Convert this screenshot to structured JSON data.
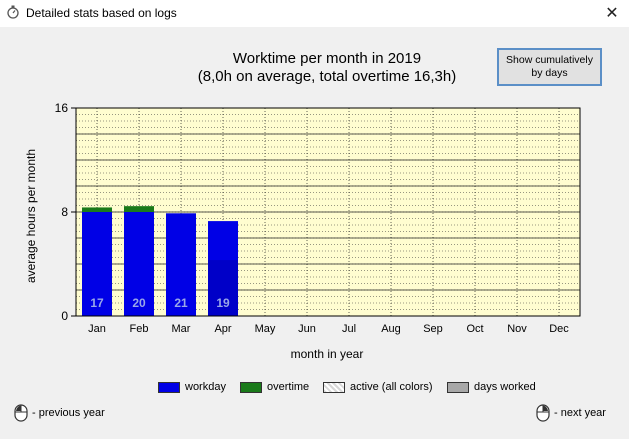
{
  "window": {
    "title": "Detailed stats based on logs",
    "close_label": "✕"
  },
  "toggle_button": {
    "label": "Show cumulatively\nby days"
  },
  "colors": {
    "plot_bg": "#fffdd0",
    "workday": "#0000e6",
    "overtime": "#1a7a1a",
    "active": "#d8d8d8",
    "days_worked": "#a8a8a8"
  },
  "chart_data": {
    "type": "bar",
    "title": "Worktime per month in 2019",
    "subtitle": "(8,0h on average,  total overtime 16,3h)",
    "xlabel": "month in year",
    "ylabel": "average hours per month",
    "categories": [
      "Jan",
      "Feb",
      "Mar",
      "Apr",
      "May",
      "Jun",
      "Jul",
      "Aug",
      "Sep",
      "Oct",
      "Nov",
      "Dec"
    ],
    "series": [
      {
        "name": "workday",
        "values": [
          8.0,
          8.0,
          7.9,
          7.3,
          0,
          0,
          0,
          0,
          0,
          0,
          0,
          0
        ]
      },
      {
        "name": "overtime",
        "values": [
          0.35,
          0.45,
          0,
          0,
          0,
          0,
          0,
          0,
          0,
          0,
          0,
          0
        ]
      }
    ],
    "days_worked": [
      17,
      20,
      21,
      19,
      null,
      null,
      null,
      null,
      null,
      null,
      null,
      null
    ],
    "yticks": [
      0,
      8,
      16
    ],
    "ylim": [
      0,
      16
    ],
    "grid": true
  },
  "legend": [
    {
      "label": "workday",
      "color": "#0000e6",
      "pattern": false
    },
    {
      "label": "overtime",
      "color": "#1a7a1a",
      "pattern": false
    },
    {
      "label": "active (all colors)",
      "color": "#d8d8d8",
      "pattern": true
    },
    {
      "label": "days worked",
      "color": "#a8a8a8",
      "pattern": false
    }
  ],
  "nav": {
    "prev_label": "- previous year",
    "next_label": "- next year"
  }
}
